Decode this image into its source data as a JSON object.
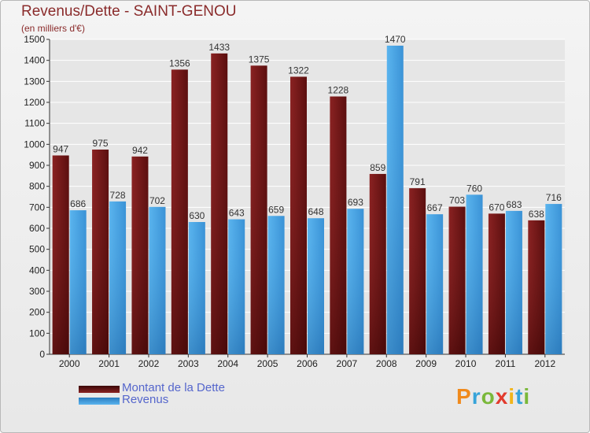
{
  "title": "Revenus/Dette - SAINT-GENOU",
  "subtitle": "(en milliers d'€)",
  "logo": "Proxiti",
  "colors": {
    "dette": "#7a1a1a",
    "revenus": "#4aa3e0",
    "grid": "#ffffff",
    "title": "#8a2b2b",
    "legend_text": "#5566cc"
  },
  "chart_data": {
    "type": "bar",
    "categories": [
      "2000",
      "2001",
      "2002",
      "2003",
      "2004",
      "2005",
      "2006",
      "2007",
      "2008",
      "2009",
      "2010",
      "2011",
      "2012"
    ],
    "series": [
      {
        "name": "Montant de la Dette",
        "values": [
          947,
          975,
          942,
          1356,
          1433,
          1375,
          1322,
          1228,
          859,
          791,
          703,
          670,
          638
        ]
      },
      {
        "name": "Revenus",
        "values": [
          686,
          728,
          702,
          630,
          643,
          659,
          648,
          693,
          1470,
          667,
          760,
          683,
          716
        ]
      }
    ],
    "ylim": [
      0,
      1500
    ],
    "yticks": [
      0,
      100,
      200,
      300,
      400,
      500,
      600,
      700,
      800,
      900,
      1000,
      1100,
      1200,
      1300,
      1400,
      1500
    ],
    "grid": true,
    "legend_position": "bottom-left"
  }
}
